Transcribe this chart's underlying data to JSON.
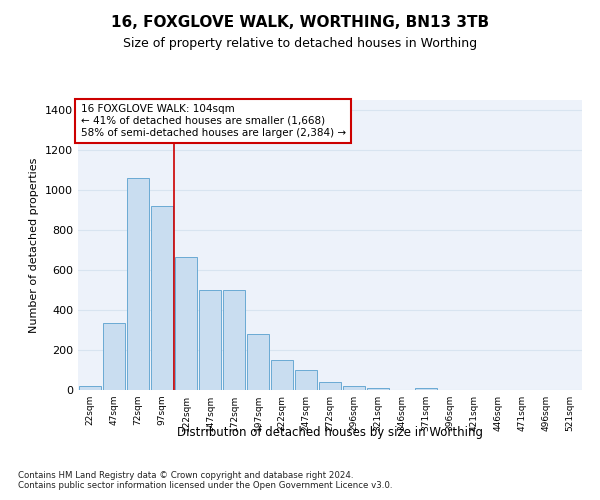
{
  "title": "16, FOXGLOVE WALK, WORTHING, BN13 3TB",
  "subtitle": "Size of property relative to detached houses in Worthing",
  "xlabel": "Distribution of detached houses by size in Worthing",
  "ylabel": "Number of detached properties",
  "categories": [
    "22sqm",
    "47sqm",
    "72sqm",
    "97sqm",
    "122sqm",
    "147sqm",
    "172sqm",
    "197sqm",
    "222sqm",
    "247sqm",
    "272sqm",
    "296sqm",
    "321sqm",
    "346sqm",
    "371sqm",
    "396sqm",
    "421sqm",
    "446sqm",
    "471sqm",
    "496sqm",
    "521sqm"
  ],
  "values": [
    20,
    335,
    1060,
    920,
    665,
    500,
    500,
    280,
    150,
    100,
    40,
    22,
    12,
    0,
    10,
    0,
    0,
    0,
    0,
    0,
    0
  ],
  "bar_color": "#c9ddf0",
  "bar_edge_color": "#6aaad4",
  "grid_color": "#d8e4f0",
  "background_color": "#edf2fa",
  "vline_color": "#cc0000",
  "vline_x_index": 3,
  "annotation_line1": "16 FOXGLOVE WALK: 104sqm",
  "annotation_line2": "← 41% of detached houses are smaller (1,668)",
  "annotation_line3": "58% of semi-detached houses are larger (2,384) →",
  "annotation_box_color": "#ffffff",
  "annotation_box_edge": "#cc0000",
  "footnote": "Contains HM Land Registry data © Crown copyright and database right 2024.\nContains public sector information licensed under the Open Government Licence v3.0.",
  "ylim": [
    0,
    1450
  ],
  "yticks": [
    0,
    200,
    400,
    600,
    800,
    1000,
    1200,
    1400
  ],
  "bar_width": 0.9
}
